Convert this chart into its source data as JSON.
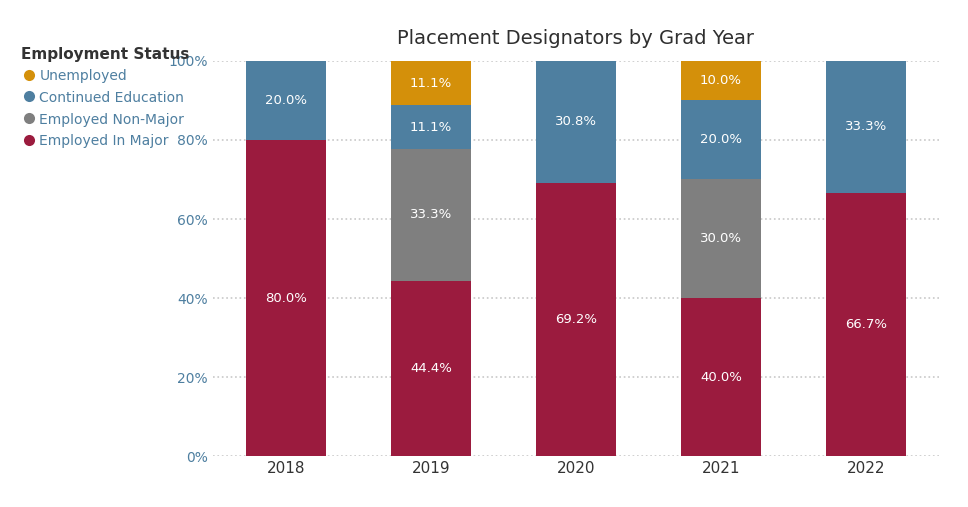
{
  "title": "Placement Designators by Grad Year",
  "years": [
    "2018",
    "2019",
    "2020",
    "2021",
    "2022"
  ],
  "categories": [
    "Employed In Major",
    "Employed Non-Major",
    "Continued Education",
    "Unemployed"
  ],
  "colors": {
    "Employed In Major": "#9B1B3E",
    "Employed Non-Major": "#7F7F7F",
    "Continued Education": "#4E7FA0",
    "Unemployed": "#D4900A"
  },
  "data": {
    "Employed In Major": [
      80.0,
      44.4,
      69.2,
      40.0,
      66.7
    ],
    "Employed Non-Major": [
      0.0,
      33.3,
      0.0,
      30.0,
      0.0
    ],
    "Continued Education": [
      20.0,
      11.1,
      30.8,
      20.0,
      33.3
    ],
    "Unemployed": [
      0.0,
      11.1,
      0.0,
      10.0,
      0.0
    ]
  },
  "labels": {
    "Employed In Major": [
      "80.0%",
      "44.4%",
      "69.2%",
      "40.0%",
      "66.7%"
    ],
    "Employed Non-Major": [
      "",
      "33.3%",
      "",
      "30.0%",
      ""
    ],
    "Continued Education": [
      "20.0%",
      "11.1%",
      "30.8%",
      "20.0%",
      "33.3%"
    ],
    "Unemployed": [
      "",
      "11.1%",
      "",
      "10.0%",
      ""
    ]
  },
  "yticks": [
    0,
    20,
    40,
    60,
    80,
    100
  ],
  "ytick_labels": [
    "0%",
    "20%",
    "40%",
    "60%",
    "80%",
    "100%"
  ],
  "legend_order": [
    "Unemployed",
    "Continued Education",
    "Employed Non-Major",
    "Employed In Major"
  ],
  "legend_title": "Employment Status",
  "background_color": "#FFFFFF",
  "grid_color": "#C8C8C8",
  "text_color": "#FFFFFF",
  "title_color": "#2F2F2F",
  "axis_tick_color": "#4E7FA0",
  "bar_width": 0.55
}
